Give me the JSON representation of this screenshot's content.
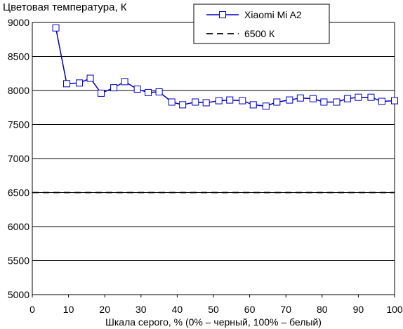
{
  "chart_data": {
    "type": "line",
    "title": "Цветовая температура, К",
    "xlabel": "Шкала серого, % (0% – черный, 100% – белый)",
    "ylabel": "",
    "xlim": [
      0,
      100
    ],
    "ylim": [
      5000,
      9000
    ],
    "xticks": [
      0,
      10,
      20,
      30,
      40,
      50,
      60,
      70,
      80,
      90,
      100
    ],
    "yticks": [
      5000,
      5500,
      6000,
      6500,
      7000,
      7500,
      8000,
      8500,
      9000
    ],
    "grid": "horizontal",
    "legend_position": "top-right",
    "series": [
      {
        "name": "Xiaomi Mi A2",
        "color": "#0000c0",
        "marker": "square",
        "line": "solid",
        "x": [
          6.5,
          9.5,
          13,
          16,
          19,
          22.5,
          25.5,
          29,
          32,
          35,
          38.5,
          41.5,
          45,
          48,
          51.5,
          54.5,
          58,
          61,
          64.5,
          67.5,
          71,
          74,
          77.5,
          80.5,
          84,
          87,
          90,
          93.5,
          96.5,
          100
        ],
        "values": [
          8920,
          8100,
          8110,
          8180,
          7960,
          8040,
          8130,
          8020,
          7970,
          7980,
          7830,
          7790,
          7830,
          7820,
          7850,
          7860,
          7850,
          7790,
          7770,
          7830,
          7860,
          7890,
          7880,
          7830,
          7830,
          7880,
          7900,
          7900,
          7840,
          7850
        ]
      },
      {
        "name": "6500 К",
        "color": "#000000",
        "marker": "none",
        "line": "dashed",
        "x": [
          0,
          100
        ],
        "values": [
          6500,
          6500
        ]
      }
    ]
  }
}
